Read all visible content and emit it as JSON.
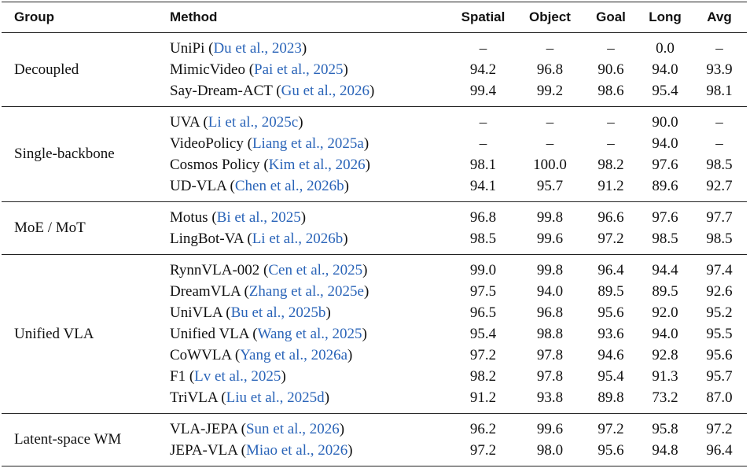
{
  "header": [
    "Group",
    "Method",
    "Spatial",
    "Object",
    "Goal",
    "Long",
    "Avg"
  ],
  "groups": [
    {
      "name": "Decoupled",
      "rows": [
        {
          "method": "UniPi",
          "citation": "Du et al., 2023",
          "values": [
            "–",
            "–",
            "–",
            "0.0",
            "–"
          ]
        },
        {
          "method": "MimicVideo",
          "citation": "Pai et al., 2025",
          "values": [
            "94.2",
            "96.8",
            "90.6",
            "94.0",
            "93.9"
          ]
        },
        {
          "method": "Say-Dream-ACT",
          "citation": "Gu et al., 2026",
          "values": [
            "99.4",
            "99.2",
            "98.6",
            "95.4",
            "98.1"
          ]
        }
      ]
    },
    {
      "name": "Single-backbone",
      "rows": [
        {
          "method": "UVA",
          "citation": "Li et al., 2025c",
          "values": [
            "–",
            "–",
            "–",
            "90.0",
            "–"
          ]
        },
        {
          "method": "VideoPolicy",
          "citation": "Liang et al., 2025a",
          "values": [
            "–",
            "–",
            "–",
            "94.0",
            "–"
          ]
        },
        {
          "method": "Cosmos Policy",
          "citation": "Kim et al., 2026",
          "values": [
            "98.1",
            "100.0",
            "98.2",
            "97.6",
            "98.5"
          ]
        },
        {
          "method": "UD-VLA",
          "citation": "Chen et al., 2026b",
          "values": [
            "94.1",
            "95.7",
            "91.2",
            "89.6",
            "92.7"
          ]
        }
      ]
    },
    {
      "name": "MoE / MoT",
      "rows": [
        {
          "method": "Motus",
          "citation": "Bi et al., 2025",
          "values": [
            "96.8",
            "99.8",
            "96.6",
            "97.6",
            "97.7"
          ]
        },
        {
          "method": "LingBot-VA",
          "citation": "Li et al., 2026b",
          "values": [
            "98.5",
            "99.6",
            "97.2",
            "98.5",
            "98.5"
          ]
        }
      ]
    },
    {
      "name": "Unified VLA",
      "rows": [
        {
          "method": "RynnVLA-002",
          "citation": "Cen et al., 2025",
          "values": [
            "99.0",
            "99.8",
            "96.4",
            "94.4",
            "97.4"
          ]
        },
        {
          "method": "DreamVLA",
          "citation": "Zhang et al., 2025e",
          "values": [
            "97.5",
            "94.0",
            "89.5",
            "89.5",
            "92.6"
          ]
        },
        {
          "method": "UniVLA",
          "citation": "Bu et al., 2025b",
          "values": [
            "96.5",
            "96.8",
            "95.6",
            "92.0",
            "95.2"
          ]
        },
        {
          "method": "Unified VLA",
          "citation": "Wang et al., 2025",
          "values": [
            "95.4",
            "98.8",
            "93.6",
            "94.0",
            "95.5"
          ]
        },
        {
          "method": "CoWVLA",
          "citation": "Yang et al., 2026a",
          "values": [
            "97.2",
            "97.8",
            "94.6",
            "92.8",
            "95.6"
          ]
        },
        {
          "method": "F1",
          "citation": "Lv et al., 2025",
          "values": [
            "98.2",
            "97.8",
            "95.4",
            "91.3",
            "95.7"
          ]
        },
        {
          "method": "TriVLA",
          "citation": "Liu et al., 2025d",
          "values": [
            "91.2",
            "93.8",
            "89.8",
            "73.2",
            "87.0"
          ]
        }
      ]
    },
    {
      "name": "Latent-space WM",
      "rows": [
        {
          "method": "VLA-JEPA",
          "citation": "Sun et al., 2026",
          "values": [
            "96.2",
            "99.6",
            "97.2",
            "95.8",
            "97.2"
          ]
        },
        {
          "method": "JEPA-VLA",
          "citation": "Miao et al., 2026",
          "values": [
            "97.2",
            "98.0",
            "95.6",
            "94.8",
            "96.4"
          ]
        }
      ]
    }
  ]
}
